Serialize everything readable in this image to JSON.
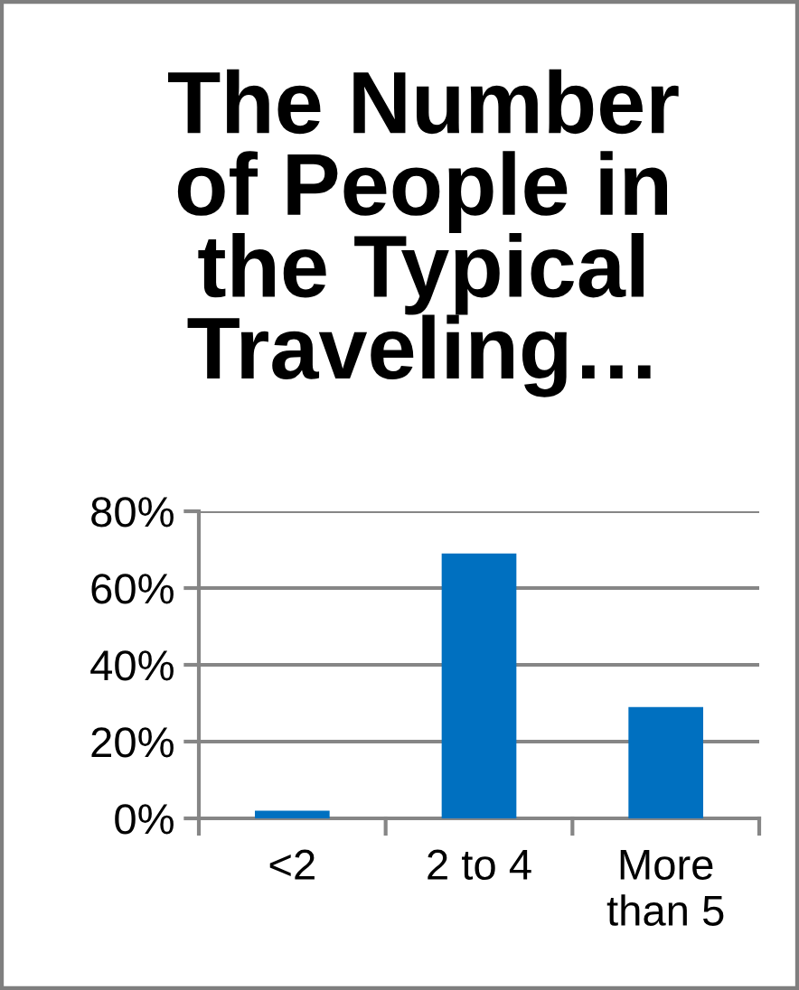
{
  "chart_data": {
    "type": "bar",
    "title": "The Number\nof People in\nthe Typical\nTraveling…",
    "categories": [
      "<2",
      "2 to 4",
      "More\nthan 5"
    ],
    "values": [
      2,
      69,
      29
    ],
    "color": "#0070c0",
    "ylim": [
      0,
      80
    ],
    "yticks": [
      {
        "value": 0,
        "label": "0%"
      },
      {
        "value": 20,
        "label": "20%"
      },
      {
        "value": 40,
        "label": "40%"
      },
      {
        "value": 60,
        "label": "60%"
      },
      {
        "value": 80,
        "label": "80%"
      }
    ],
    "grid": "y",
    "legend": false
  }
}
